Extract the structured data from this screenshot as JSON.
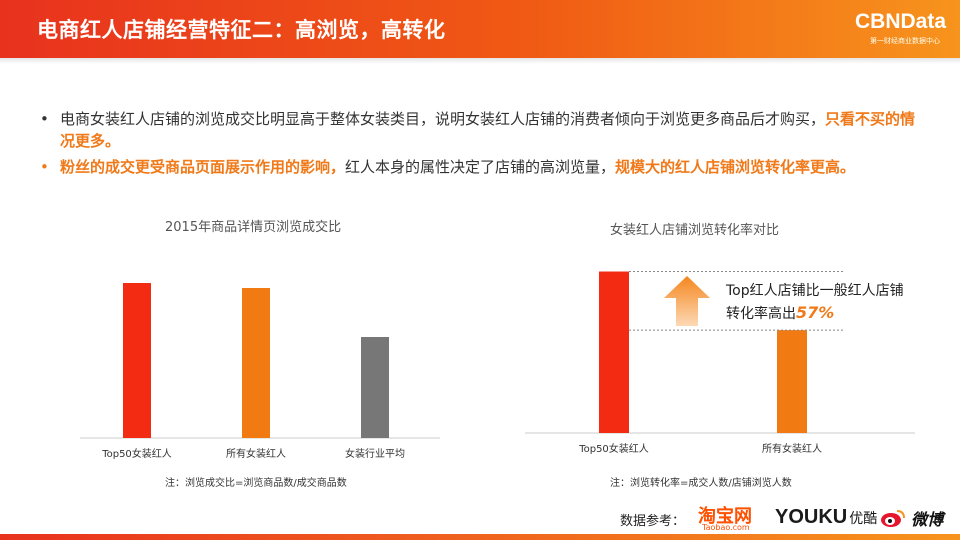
{
  "header": {
    "title": "电商红人店铺经营特征二：高浏览，高转化",
    "logo_text": "CBNData",
    "logo_sub": "第一财经商业数据中心"
  },
  "bullets": [
    {
      "text_normal": "电商女装红人店铺的浏览成交比明显高于整体女装类目，说明女装红人店铺的消费者倾向于浏览更多商品后才购买，",
      "text_highlight": "只看不买的情况更多。"
    },
    {
      "text_highlight_1": "粉丝的成交更受商品页面展示作用的影响，",
      "text_normal": "红人本身的属性决定了店铺的高浏览量，",
      "text_highlight_2": "规模大的红人店铺浏览转化率更高。"
    }
  ],
  "colors": {
    "red": "#f22b12",
    "orange": "#f27a12",
    "gray": "#777777",
    "accent": "#f07a1a"
  },
  "chart_data": [
    {
      "type": "bar",
      "title": "2015年商品详情页浏览成交比",
      "categories": [
        "Top50女装红人",
        "所有女装红人",
        "女装行业平均"
      ],
      "values": [
        155,
        150,
        101
      ],
      "bar_colors": [
        "#f22b12",
        "#f27a12",
        "#777777"
      ],
      "ylim": [
        0,
        180
      ],
      "note": "注：浏览成交比=浏览商品数/成交商品数",
      "grid": false
    },
    {
      "type": "bar",
      "title": "女装红人店铺浏览转化率对比",
      "categories": [
        "Top50女装红人",
        "所有女装红人"
      ],
      "values": [
        1.57,
        1.0
      ],
      "bar_colors": [
        "#f22b12",
        "#f27a12"
      ],
      "ylim": [
        0,
        1.75
      ],
      "note": "注：浏览转化率=成交人数/店铺浏览人数",
      "annotation_line1": "Top红人店铺比一般红人店铺",
      "annotation_line2_prefix": "转化率高出",
      "annotation_pct": "57%",
      "grid": false
    }
  ],
  "sources": {
    "label": "数据参考：",
    "taobao": "淘宝网",
    "taobao_sub": "Taobao.com",
    "youku": "YOUKU",
    "youku_cn": "优酷",
    "weibo": "微博"
  }
}
